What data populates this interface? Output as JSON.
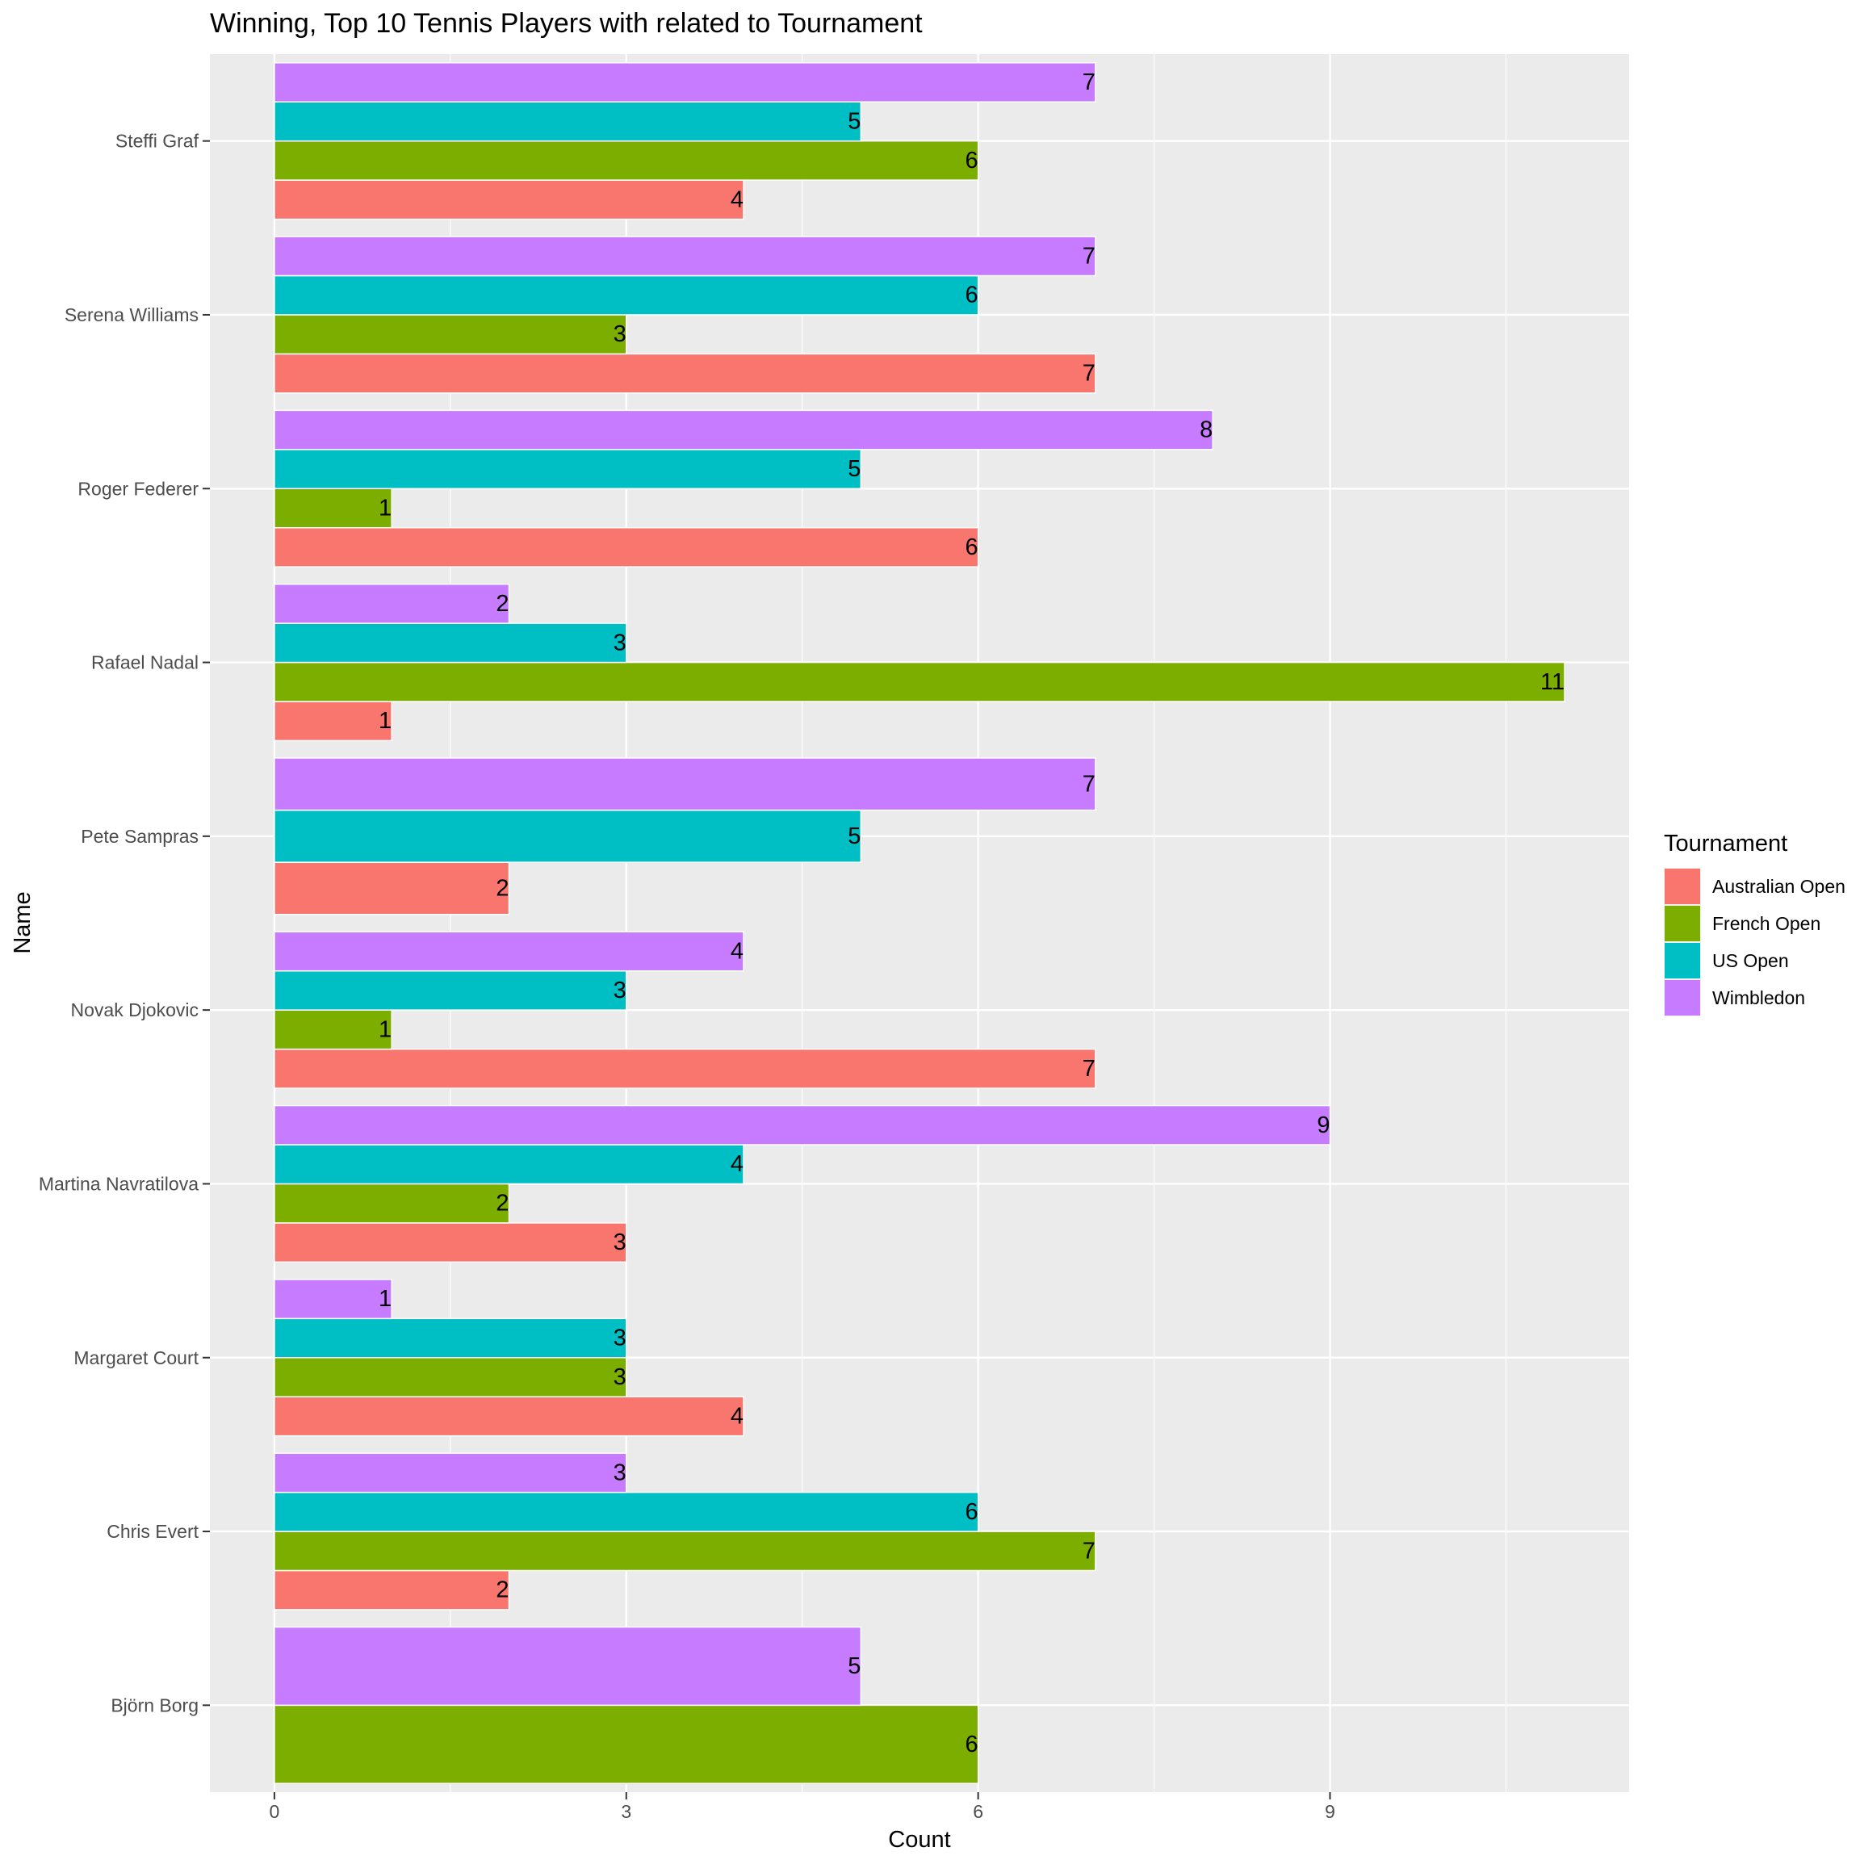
{
  "chart_data": {
    "type": "bar",
    "orientation": "horizontal",
    "title": "Winning, Top 10 Tennis Players with related to Tournament",
    "xlabel": "Count",
    "ylabel": "Name",
    "xlim": [
      -0.55,
      11.55
    ],
    "x_ticks": [
      0,
      3,
      6,
      9
    ],
    "x_tick_labels": [
      "0",
      "3",
      "6",
      "9"
    ],
    "grid": true,
    "legend": {
      "title": "Tournament",
      "position": "right"
    },
    "categories": [
      "Björn Borg",
      "Chris Evert",
      "Margaret Court",
      "Martina Navratilova",
      "Novak Djokovic",
      "Pete Sampras",
      "Rafael Nadal",
      "Roger Federer",
      "Serena Williams",
      "Steffi Graf"
    ],
    "series": [
      {
        "name": "Australian Open",
        "color": "#F8766D",
        "values": [
          null,
          2,
          4,
          3,
          7,
          2,
          1,
          6,
          7,
          4
        ]
      },
      {
        "name": "French Open",
        "color": "#7CAE00",
        "values": [
          6,
          7,
          3,
          2,
          1,
          null,
          11,
          1,
          3,
          6
        ]
      },
      {
        "name": "US Open",
        "color": "#00BFC4",
        "values": [
          null,
          6,
          3,
          4,
          3,
          5,
          3,
          5,
          6,
          5
        ]
      },
      {
        "name": "Wimbledon",
        "color": "#C77CFF",
        "values": [
          5,
          3,
          1,
          9,
          4,
          7,
          2,
          8,
          7,
          7
        ]
      }
    ],
    "panel_background": "#EBEBEB",
    "grid_color": "#FFFFFF"
  }
}
